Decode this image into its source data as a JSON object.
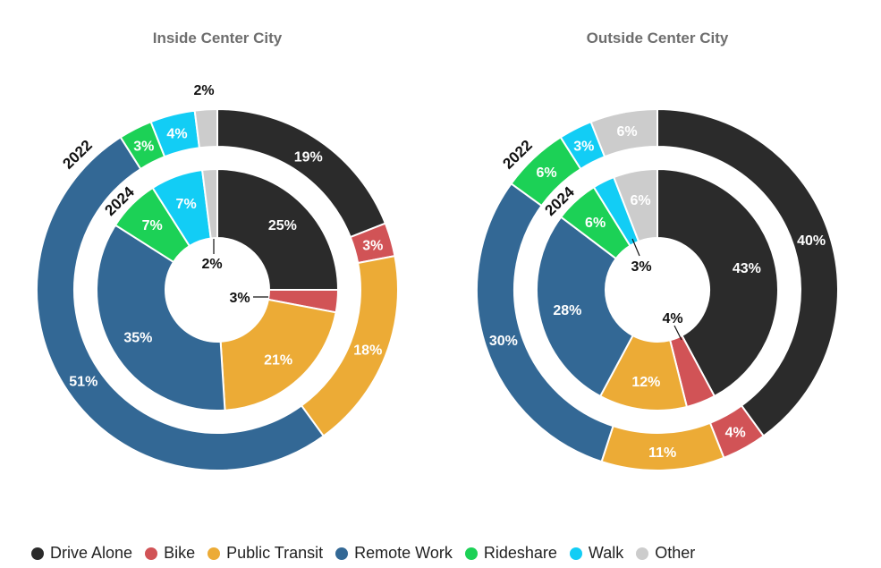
{
  "colors": {
    "Drive Alone": "#2b2b2b",
    "Bike": "#d15356",
    "Public Transit": "#ecab36",
    "Remote Work": "#336895",
    "Rideshare": "#1cd156",
    "Walk": "#12cdf5",
    "Other": "#cccccc"
  },
  "legend": [
    {
      "label": "Drive Alone",
      "icon": "dot-icon"
    },
    {
      "label": "Bike",
      "icon": "dot-icon"
    },
    {
      "label": "Public Transit",
      "icon": "dot-icon"
    },
    {
      "label": "Remote Work",
      "icon": "dot-icon"
    },
    {
      "label": "Rideshare",
      "icon": "dot-icon"
    },
    {
      "label": "Walk",
      "icon": "dot-icon"
    },
    {
      "label": "Other",
      "icon": "dot-icon"
    }
  ],
  "chart_data": [
    {
      "type": "pie",
      "title": "Inside Center City",
      "categories": [
        "Drive Alone",
        "Bike",
        "Public Transit",
        "Remote Work",
        "Rideshare",
        "Walk",
        "Other"
      ],
      "series": [
        {
          "name": "2022",
          "ring": "outer",
          "values": [
            19,
            3,
            18,
            51,
            3,
            4,
            2
          ],
          "labels": [
            "19%",
            "3%",
            "18%",
            "51%",
            "3%",
            "4%",
            "2%"
          ]
        },
        {
          "name": "2024",
          "ring": "inner",
          "values": [
            25,
            3,
            21,
            35,
            7,
            7,
            2
          ],
          "labels": [
            "25%",
            "3%",
            "21%",
            "35%",
            "7%",
            "7%",
            "2%"
          ]
        }
      ]
    },
    {
      "type": "pie",
      "title": "Outside Center City",
      "categories": [
        "Drive Alone",
        "Bike",
        "Public Transit",
        "Remote Work",
        "Rideshare",
        "Walk",
        "Other"
      ],
      "series": [
        {
          "name": "2022",
          "ring": "outer",
          "values": [
            40,
            4,
            11,
            30,
            6,
            3,
            6
          ],
          "labels": [
            "40%",
            "4%",
            "11%",
            "30%",
            "6%",
            "3%",
            "6%"
          ]
        },
        {
          "name": "2024",
          "ring": "inner",
          "values": [
            43,
            4,
            12,
            28,
            6,
            3,
            6
          ],
          "labels": [
            "43%",
            "4%",
            "12%",
            "28%",
            "6%",
            "3%",
            "6%"
          ]
        }
      ]
    }
  ]
}
